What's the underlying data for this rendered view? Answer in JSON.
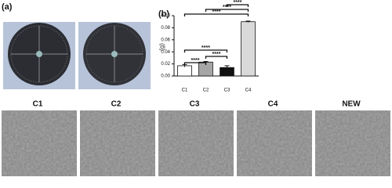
{
  "panel_a": "(a)",
  "chart_data": {
    "type": "bar",
    "panel_label": "(b)",
    "ylabel": "(g)",
    "categories": [
      "C1",
      "C2",
      "C3",
      "C4"
    ],
    "values": [
      0.017,
      0.023,
      0.014,
      0.09
    ],
    "errors": [
      0.002,
      0.001,
      0.003,
      0.001
    ],
    "colors": [
      "#ffffff",
      "#a6a6a6",
      "#111111",
      "#d9d9d9"
    ],
    "ylim": [
      0,
      0.1
    ],
    "yticks": [
      {
        "value": 0,
        "label": "0.00"
      },
      {
        "value": 0.02,
        "label": "0.02"
      },
      {
        "value": 0.04,
        "label": "0.04"
      },
      {
        "value": 0.06,
        "label": "0.06"
      },
      {
        "value": 0.08,
        "label": "0.08"
      },
      {
        "value": 0.1,
        "label": "0.10"
      }
    ],
    "annotations": [
      {
        "label": "****",
        "between": [
          "C1",
          "C2"
        ]
      },
      {
        "label": "****",
        "between": [
          "C2",
          "C3"
        ]
      },
      {
        "label": "****",
        "between": [
          "C1",
          "C3"
        ]
      },
      {
        "label": "****",
        "between": [
          "C1",
          "C4"
        ]
      },
      {
        "label": "****",
        "between": [
          "C2",
          "C4"
        ]
      },
      {
        "label": "****",
        "between": [
          "C3",
          "C4"
        ]
      }
    ]
  },
  "sem_labels": [
    "C1",
    "C2",
    "C3",
    "C4",
    "NEW"
  ]
}
